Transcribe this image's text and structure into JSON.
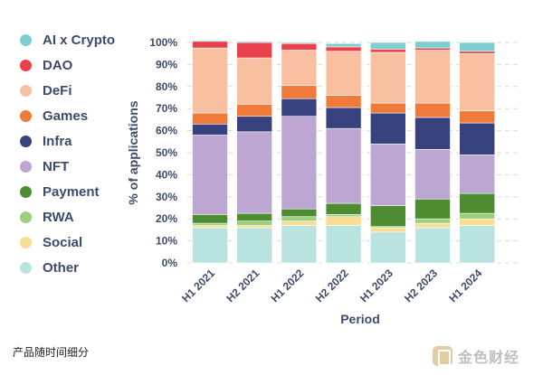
{
  "chart_data": {
    "type": "bar",
    "stacked": true,
    "xlabel": "Period",
    "ylabel": "% of applications",
    "ylim": [
      0,
      100
    ],
    "yticks": [
      "0%",
      "10%",
      "20%",
      "30%",
      "40%",
      "50%",
      "60%",
      "70%",
      "80%",
      "90%",
      "100%"
    ],
    "grid": "horizontal dashed",
    "legend_position": "left",
    "categories": [
      "H1 2021",
      "H2 2021",
      "H1 2022",
      "H2 2022",
      "H1 2023",
      "H2 2023",
      "H1 2024"
    ],
    "series": [
      {
        "name": "Other",
        "color": "#b8e3df",
        "values": [
          16,
          16,
          17,
          17,
          14,
          16,
          17
        ]
      },
      {
        "name": "Social",
        "color": "#f7dc94",
        "values": [
          1,
          1,
          2,
          4,
          2,
          2,
          3
        ]
      },
      {
        "name": "RWA",
        "color": "#9ccf7a",
        "values": [
          1,
          2,
          2,
          1,
          0.5,
          2,
          2.5
        ]
      },
      {
        "name": "Payment",
        "color": "#4d8c31",
        "values": [
          4,
          3.5,
          3.5,
          5,
          9.5,
          9,
          9
        ]
      },
      {
        "name": "NFT",
        "color": "#bda6d2",
        "values": [
          36,
          37,
          42,
          34,
          28,
          22.5,
          17.5
        ]
      },
      {
        "name": "Infra",
        "color": "#37417e",
        "values": [
          5,
          7,
          8,
          9.5,
          14,
          14.5,
          14.5
        ]
      },
      {
        "name": "Games",
        "color": "#ef7a3a",
        "values": [
          5,
          5.5,
          6,
          5.5,
          4.5,
          6.5,
          5.5
        ]
      },
      {
        "name": "DeFi",
        "color": "#f8c0a0",
        "values": [
          29.5,
          21,
          16,
          20,
          23,
          24,
          26
        ]
      },
      {
        "name": "DAO",
        "color": "#e9414c",
        "values": [
          3,
          7,
          3,
          2,
          1.5,
          1,
          1
        ]
      },
      {
        "name": "AI x Crypto",
        "color": "#7dcfcf",
        "values": [
          0.5,
          0.5,
          0.5,
          1.5,
          3,
          3,
          4
        ]
      }
    ]
  },
  "legend_order": [
    "AI x Crypto",
    "DAO",
    "DeFi",
    "Games",
    "Infra",
    "NFT",
    "Payment",
    "RWA",
    "Social",
    "Other"
  ],
  "footer_caption": "产品随时间细分",
  "watermark_text": "金色财经"
}
